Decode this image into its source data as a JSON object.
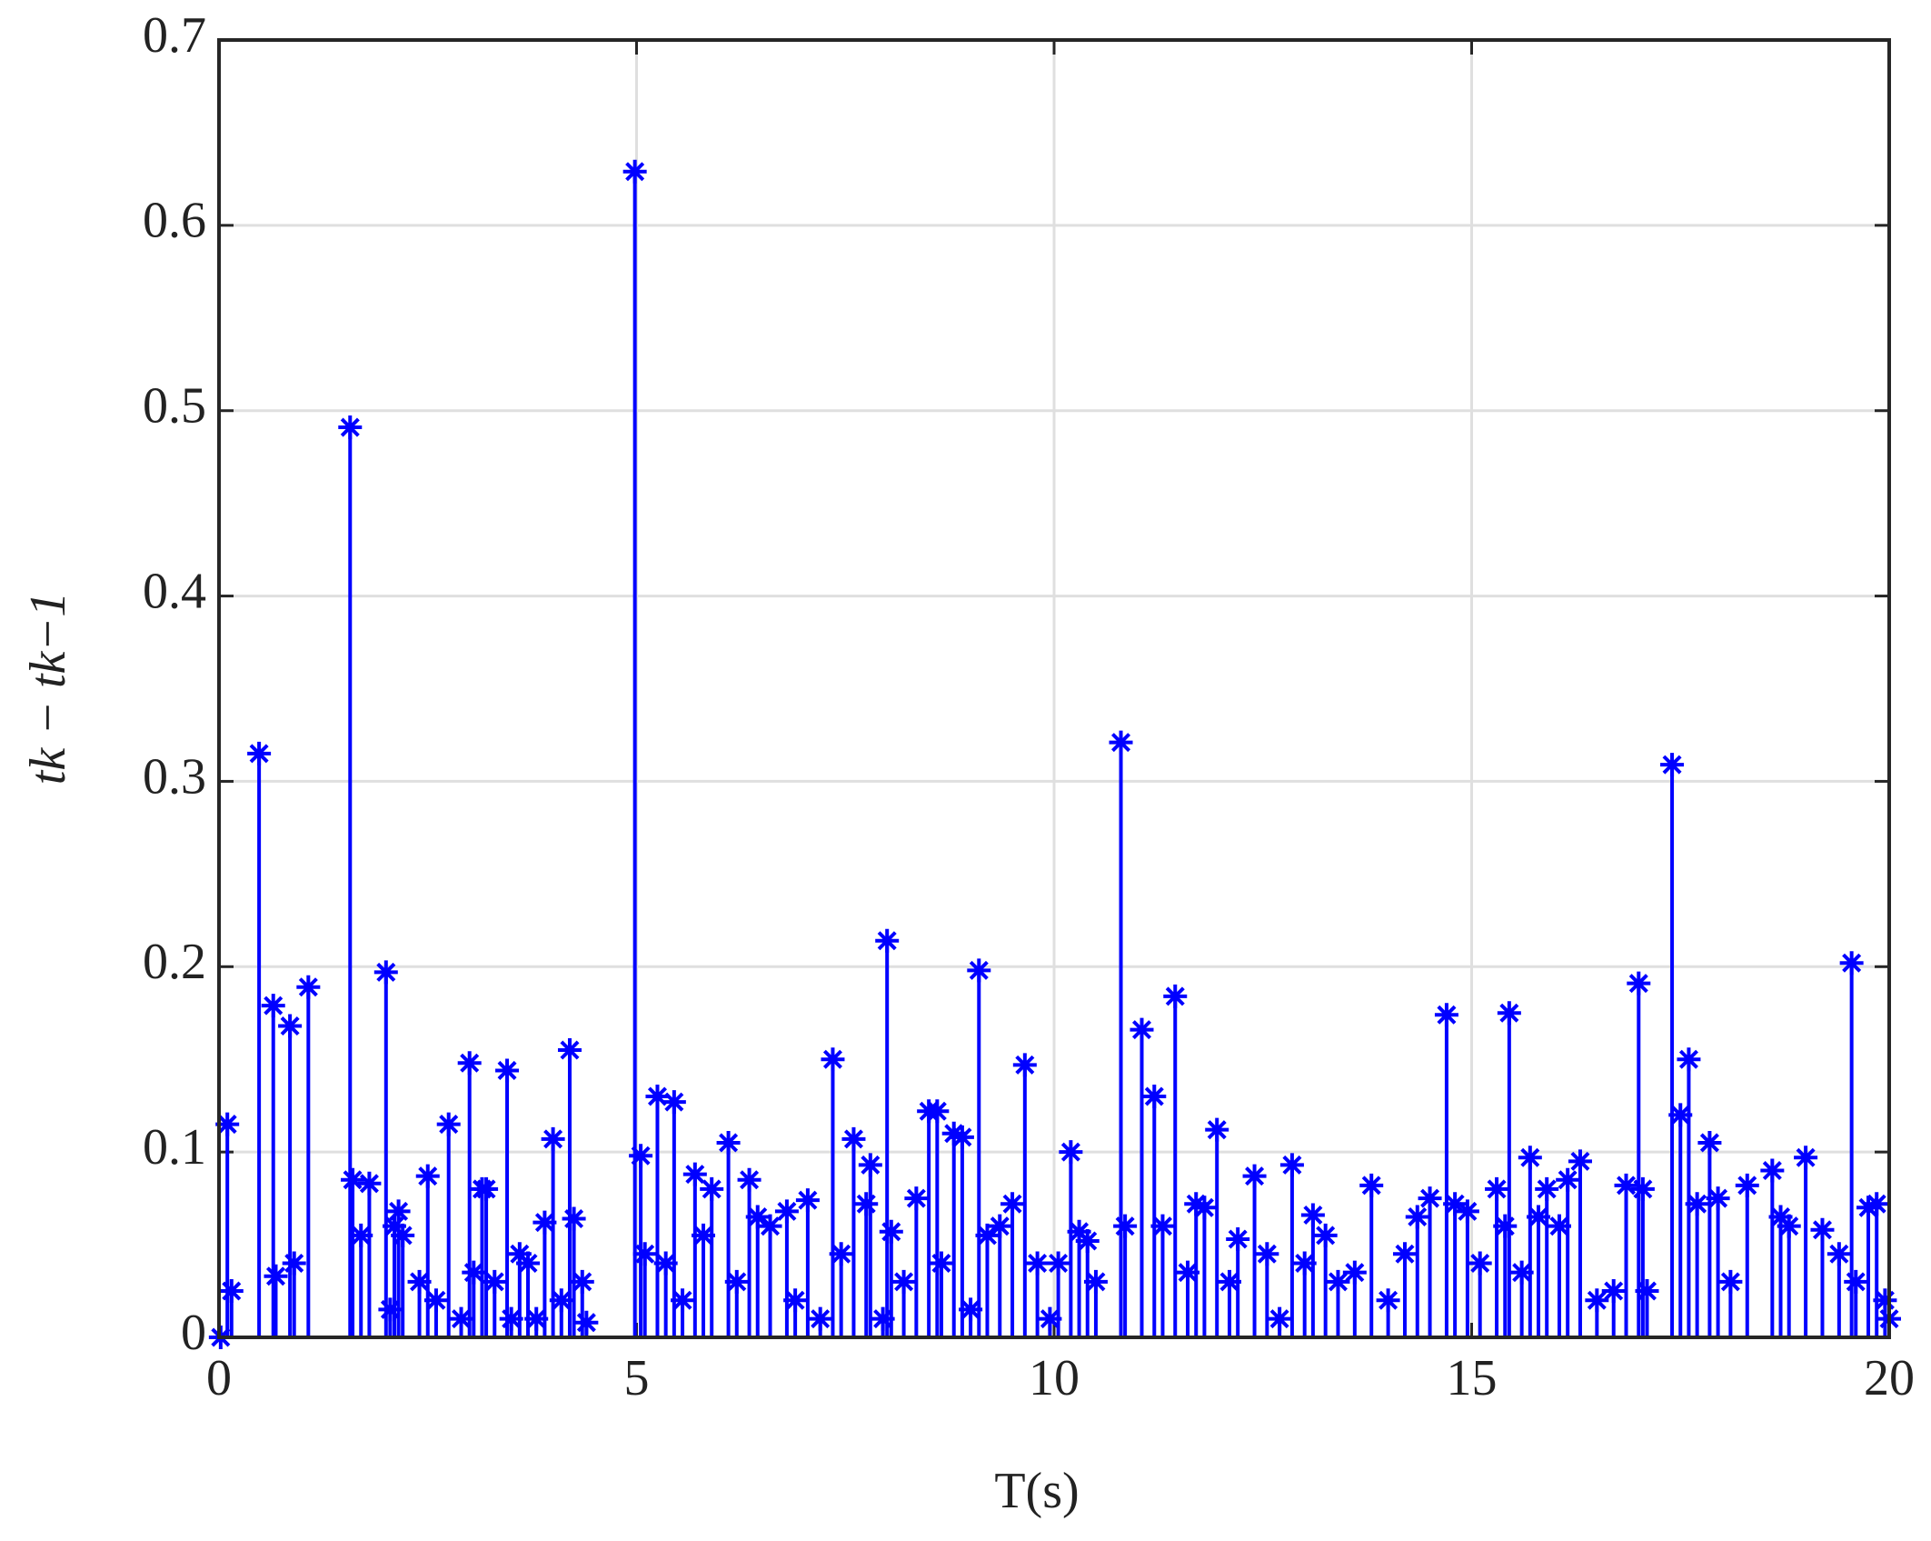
{
  "chart_data": {
    "type": "stem",
    "x_label": "T(s)",
    "y_label": "tk − tk−1",
    "color": "#0000ff",
    "grid": true,
    "xlim": [
      0,
      20
    ],
    "xticks": [
      0,
      5,
      10,
      15,
      20
    ],
    "ylim": [
      0,
      0.7
    ],
    "yticks": [
      0,
      0.1,
      0.2,
      0.3,
      0.4,
      0.5,
      0.6,
      0.7
    ],
    "x": [
      0.02,
      0.1,
      0.15,
      0.48,
      0.65,
      0.68,
      0.85,
      0.9,
      1.07,
      1.57,
      1.6,
      1.7,
      1.8,
      2.0,
      2.05,
      2.1,
      2.15,
      2.2,
      2.4,
      2.5,
      2.6,
      2.75,
      2.9,
      3.0,
      3.05,
      3.15,
      3.2,
      3.3,
      3.45,
      3.5,
      3.6,
      3.7,
      3.8,
      3.9,
      4.0,
      4.1,
      4.2,
      4.25,
      4.35,
      4.4,
      4.98,
      5.05,
      5.1,
      5.25,
      5.35,
      5.45,
      5.55,
      5.7,
      5.8,
      5.9,
      6.1,
      6.2,
      6.35,
      6.45,
      6.6,
      6.8,
      6.9,
      7.05,
      7.2,
      7.35,
      7.45,
      7.6,
      7.75,
      7.8,
      7.95,
      8.0,
      8.05,
      8.2,
      8.35,
      8.5,
      8.6,
      8.65,
      8.8,
      8.9,
      9.0,
      9.1,
      9.2,
      9.35,
      9.5,
      9.65,
      9.8,
      9.95,
      10.05,
      10.2,
      10.3,
      10.4,
      10.5,
      10.8,
      10.85,
      11.05,
      11.2,
      11.3,
      11.45,
      11.6,
      11.7,
      11.8,
      11.95,
      12.1,
      12.2,
      12.4,
      12.55,
      12.7,
      12.85,
      13.0,
      13.1,
      13.25,
      13.4,
      13.6,
      13.8,
      14.0,
      14.2,
      14.35,
      14.5,
      14.7,
      14.8,
      14.95,
      15.1,
      15.3,
      15.4,
      15.45,
      15.6,
      15.7,
      15.8,
      15.9,
      16.05,
      16.15,
      16.3,
      16.5,
      16.7,
      16.85,
      17.0,
      17.05,
      17.1,
      17.4,
      17.5,
      17.6,
      17.7,
      17.85,
      17.95,
      18.1,
      18.3,
      18.6,
      18.7,
      18.8,
      19.0,
      19.2,
      19.4,
      19.55,
      19.6,
      19.75,
      19.85,
      19.95,
      20.0
    ],
    "values": [
      0,
      0.115,
      0.025,
      0.315,
      0.179,
      0.033,
      0.168,
      0.04,
      0.189,
      0.491,
      0.085,
      0.055,
      0.083,
      0.197,
      0.015,
      0.06,
      0.068,
      0.055,
      0.03,
      0.087,
      0.02,
      0.115,
      0.01,
      0.148,
      0.035,
      0.08,
      0.08,
      0.03,
      0.144,
      0.01,
      0.045,
      0.04,
      0.01,
      0.062,
      0.107,
      0.02,
      0.155,
      0.064,
      0.03,
      0.008,
      0.629,
      0.098,
      0.045,
      0.13,
      0.04,
      0.127,
      0.02,
      0.088,
      0.055,
      0.08,
      0.105,
      0.03,
      0.085,
      0.065,
      0.06,
      0.068,
      0.02,
      0.074,
      0.01,
      0.15,
      0.045,
      0.107,
      0.072,
      0.093,
      0.01,
      0.214,
      0.057,
      0.03,
      0.075,
      0.122,
      0.122,
      0.04,
      0.11,
      0.108,
      0.015,
      0.198,
      0.055,
      0.06,
      0.072,
      0.147,
      0.04,
      0.01,
      0.04,
      0.1,
      0.057,
      0.052,
      0.03,
      0.321,
      0.06,
      0.166,
      0.13,
      0.06,
      0.184,
      0.035,
      0.072,
      0.07,
      0.112,
      0.03,
      0.053,
      0.087,
      0.045,
      0.01,
      0.093,
      0.04,
      0.066,
      0.055,
      0.03,
      0.035,
      0.082,
      0.02,
      0.045,
      0.065,
      0.075,
      0.174,
      0.072,
      0.068,
      0.04,
      0.08,
      0.06,
      0.175,
      0.035,
      0.097,
      0.065,
      0.08,
      0.06,
      0.085,
      0.095,
      0.02,
      0.025,
      0.082,
      0.191,
      0.08,
      0.025,
      0.309,
      0.12,
      0.15,
      0.072,
      0.105,
      0.075,
      0.03,
      0.082,
      0.09,
      0.065,
      0.06,
      0.097,
      0.058,
      0.045,
      0.202,
      0.03,
      0.07,
      0.072,
      0.02,
      0.01
    ]
  }
}
